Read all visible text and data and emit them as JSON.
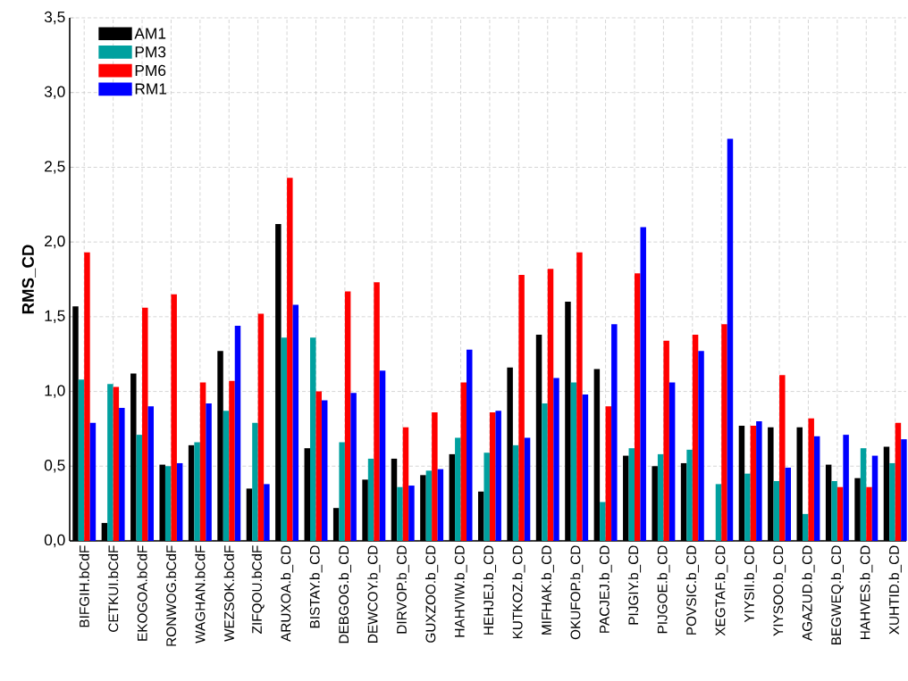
{
  "chart_data": {
    "type": "bar",
    "ylabel": "RMS_CD",
    "categories": [
      "BIFGIH.bCdF",
      "CETKUI.bCdF",
      "EKOGOA.bCdF",
      "RONWOG.bCdF",
      "WAGHAN.bCdF",
      "WEZSOK.bCdF",
      "ZIFQOU.bCdF",
      "ARUXOA.b_CD",
      "BISTAY.b_CD",
      "DEBGOG.b_CD",
      "DEWCOY.b_CD",
      "DIRVOP.b_CD",
      "GUXZOO.b_CD",
      "HAHVIW.b_CD",
      "HEHJEJ.b_CD",
      "KUTKOZ.b_CD",
      "MIFHAK.b_CD",
      "OKUFOP.b_CD",
      "PACJEJ.b_CD",
      "PIJGIY.b_CD",
      "PIJGOE.b_CD",
      "POVSIC.b_CD",
      "XEGTAF.b_CD",
      "YIYSII.b_CD",
      "YIYSOO.b_CD",
      "AGAZUD.b_CD",
      "BEGWEQ.b_CD",
      "HAHVES.b_CD",
      "XUHTID.b_CD"
    ],
    "series": [
      {
        "name": "AM1",
        "color": "#000000",
        "values": [
          1.57,
          0.12,
          1.12,
          0.51,
          0.64,
          1.27,
          0.35,
          2.12,
          0.62,
          0.22,
          0.41,
          0.55,
          0.44,
          0.58,
          0.33,
          1.16,
          1.38,
          1.6,
          1.15,
          0.57,
          0.5,
          0.52,
          0.0,
          0.77,
          0.76,
          0.76,
          0.51,
          0.42,
          0.63
        ]
      },
      {
        "name": "PM3",
        "color": "#00a09f",
        "values": [
          1.08,
          1.05,
          0.71,
          0.5,
          0.66,
          0.87,
          0.79,
          1.36,
          1.36,
          0.66,
          0.55,
          0.36,
          0.47,
          0.69,
          0.59,
          0.64,
          0.92,
          1.06,
          0.26,
          0.62,
          0.58,
          0.61,
          0.38,
          0.45,
          0.4,
          0.18,
          0.4,
          0.62,
          0.52
        ]
      },
      {
        "name": "PM6",
        "color": "#ff0000",
        "values": [
          1.93,
          1.03,
          1.56,
          1.65,
          1.06,
          1.07,
          1.52,
          2.43,
          1.0,
          1.67,
          1.73,
          0.76,
          0.86,
          1.06,
          0.86,
          1.78,
          1.82,
          1.93,
          0.9,
          1.79,
          1.34,
          1.38,
          1.45,
          0.77,
          1.11,
          0.82,
          0.36,
          0.36,
          0.79
        ]
      },
      {
        "name": "RM1",
        "color": "#0000ff",
        "values": [
          0.79,
          0.89,
          0.9,
          0.52,
          0.92,
          1.44,
          0.38,
          1.58,
          0.94,
          0.99,
          1.14,
          0.37,
          0.48,
          1.28,
          0.87,
          0.69,
          1.09,
          0.98,
          1.45,
          2.1,
          1.06,
          1.27,
          2.69,
          0.8,
          0.49,
          0.7,
          0.71,
          0.57,
          0.68
        ]
      }
    ],
    "ylim": [
      0,
      3.5
    ],
    "yticks": [
      {
        "value": 0,
        "label": "0,0"
      },
      {
        "value": 0.5,
        "label": "0,5"
      },
      {
        "value": 1,
        "label": "1,0"
      },
      {
        "value": 1.5,
        "label": "1,5"
      },
      {
        "value": 2,
        "label": "2,0"
      },
      {
        "value": 2.5,
        "label": "2,5"
      },
      {
        "value": 3,
        "label": "3,0"
      },
      {
        "value": 3.5,
        "label": "3,5"
      }
    ],
    "grid": true,
    "legend": "top left"
  }
}
